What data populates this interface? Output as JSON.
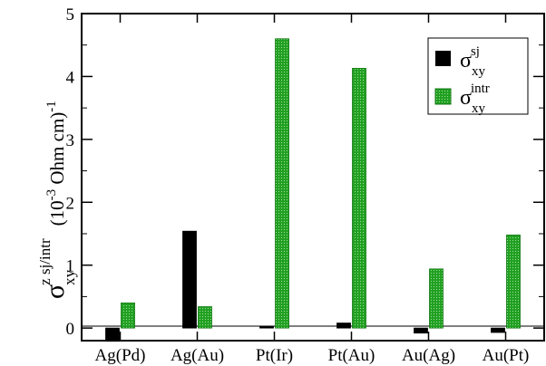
{
  "chart_data": {
    "type": "bar",
    "categories": [
      "Ag(Pd)",
      "Ag(Au)",
      "Pt(Ir)",
      "Pt(Au)",
      "Au(Ag)",
      "Au(Pt)"
    ],
    "series": [
      {
        "name": "σ_xy^sj",
        "color": "#000000",
        "pattern": "solid",
        "values": [
          -0.21,
          1.54,
          0.02,
          0.08,
          -0.08,
          -0.07
        ]
      },
      {
        "name": "σ_xy^intr",
        "color": "#22a022",
        "pattern": "dotted",
        "values": [
          0.4,
          0.34,
          4.6,
          4.13,
          0.94,
          1.48
        ]
      }
    ],
    "ylim": [
      -0.2,
      5
    ],
    "yticks": [
      "0",
      "1",
      "2",
      "3",
      "4",
      "5"
    ],
    "ylabel": {
      "symbol": "σ",
      "superscript": "z sj/intr",
      "subscript": "xy",
      "unit": "(10",
      "unit_exp": "-3",
      "unit_rest": " Ohm cm)",
      "unit_pow": "-1"
    },
    "legend": {
      "position": "top-right",
      "entries": [
        {
          "symbol": "σ",
          "sup": "sj",
          "sub": "xy"
        },
        {
          "symbol": "σ",
          "sup": "intr",
          "sub": "xy"
        }
      ]
    },
    "grid": false
  }
}
